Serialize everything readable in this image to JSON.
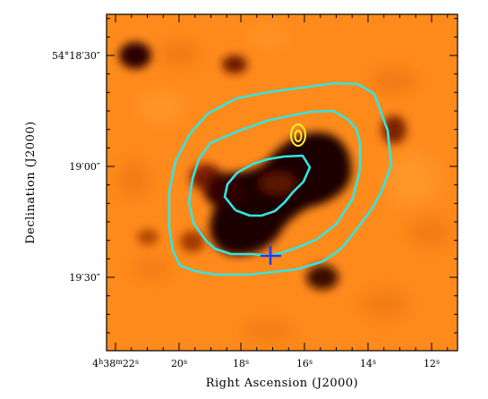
{
  "figure": {
    "x_axis_label": "Right Ascension (J2000)",
    "y_axis_label": "Declination (J2000)",
    "x_ticks": [
      {
        "main": "4",
        "parts": [
          {
            "t": "4"
          },
          {
            "t": "h",
            "sup": true
          },
          {
            "t": "38"
          },
          {
            "t": "m",
            "sup": true
          },
          {
            "t": "22"
          },
          {
            "t": "s",
            "sup": true
          }
        ]
      },
      {
        "parts": [
          {
            "t": "20"
          },
          {
            "t": "s",
            "sup": true
          }
        ]
      },
      {
        "parts": [
          {
            "t": "18"
          },
          {
            "t": "s",
            "sup": true
          }
        ]
      },
      {
        "parts": [
          {
            "t": "16"
          },
          {
            "t": "s",
            "sup": true
          }
        ]
      },
      {
        "parts": [
          {
            "t": "14"
          },
          {
            "t": "s",
            "sup": true
          }
        ]
      },
      {
        "parts": [
          {
            "t": "12"
          },
          {
            "t": "s",
            "sup": true
          }
        ]
      }
    ],
    "y_ticks": [
      {
        "text": "54°18′30″"
      },
      {
        "text": "19′00″"
      },
      {
        "text": "19′30″"
      }
    ],
    "colors": {
      "background_field": "#ff8a1c",
      "dark_emission": "#1a0000",
      "cyan_contours": "#33e6e0",
      "yellow_contours": "#ffee33",
      "cross_marker": "#1e3cff",
      "frame": "#000000"
    }
  }
}
